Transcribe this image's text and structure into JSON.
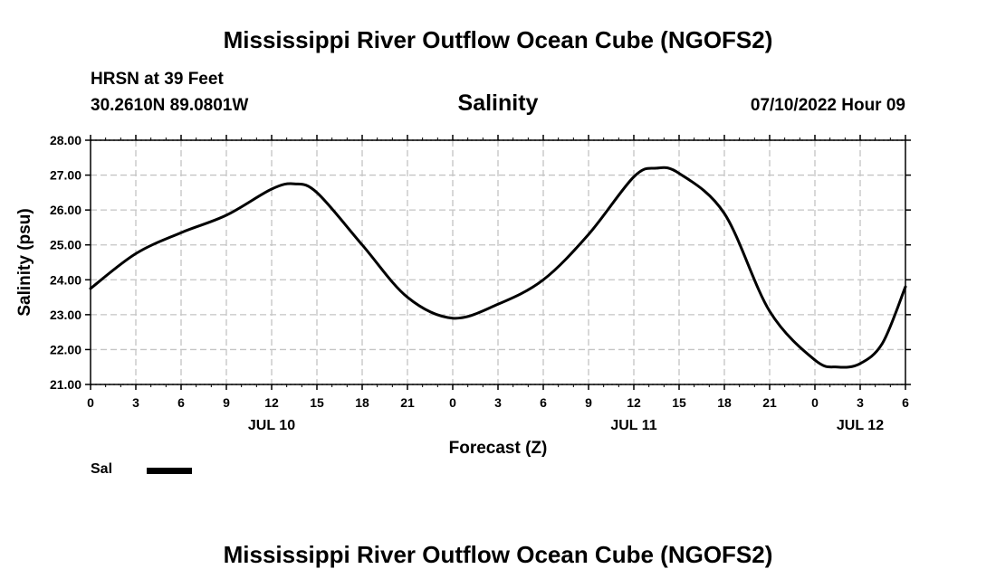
{
  "header": {
    "title": "Mississippi River Outflow Ocean Cube (NGOFS2)",
    "station": "HRSN at 39 Feet",
    "coords": "30.2610N  89.0801W",
    "datetime": "07/10/2022 Hour 09"
  },
  "footer": {
    "title": "Mississippi River Outflow Ocean Cube (NGOFS2)"
  },
  "legend": {
    "label": "Sal"
  },
  "chart_data": {
    "type": "line",
    "title": "Salinity",
    "xlabel": "Forecast (Z)",
    "ylabel": "Salinity (psu)",
    "xlim": [
      0,
      54
    ],
    "ylim": [
      21,
      28
    ],
    "grid": true,
    "y_ticks": [
      "21.00",
      "22.00",
      "23.00",
      "24.00",
      "25.00",
      "26.00",
      "27.00",
      "28.00"
    ],
    "x_ticks": [
      "0",
      "3",
      "6",
      "9",
      "12",
      "15",
      "18",
      "21",
      "0",
      "3",
      "6",
      "9",
      "12",
      "15",
      "18",
      "21",
      "0",
      "3",
      "6"
    ],
    "date_labels": [
      {
        "label": "JUL 10",
        "hour": 12
      },
      {
        "label": "JUL 11",
        "hour": 36
      },
      {
        "label": "JUL 12",
        "hour": 51
      }
    ],
    "series": [
      {
        "name": "Sal",
        "x": [
          0,
          3,
          6,
          9,
          12,
          13.5,
          15,
          18,
          21,
          24,
          27,
          30,
          33,
          36,
          37.5,
          39,
          42,
          45,
          48,
          49.5,
          51,
          52.5,
          54
        ],
        "y": [
          23.75,
          24.75,
          25.35,
          25.85,
          26.6,
          26.75,
          26.5,
          25.0,
          23.5,
          22.9,
          23.3,
          24.0,
          25.3,
          26.95,
          27.2,
          27.05,
          25.9,
          23.1,
          21.7,
          21.5,
          21.6,
          22.2,
          23.8
        ]
      }
    ]
  }
}
